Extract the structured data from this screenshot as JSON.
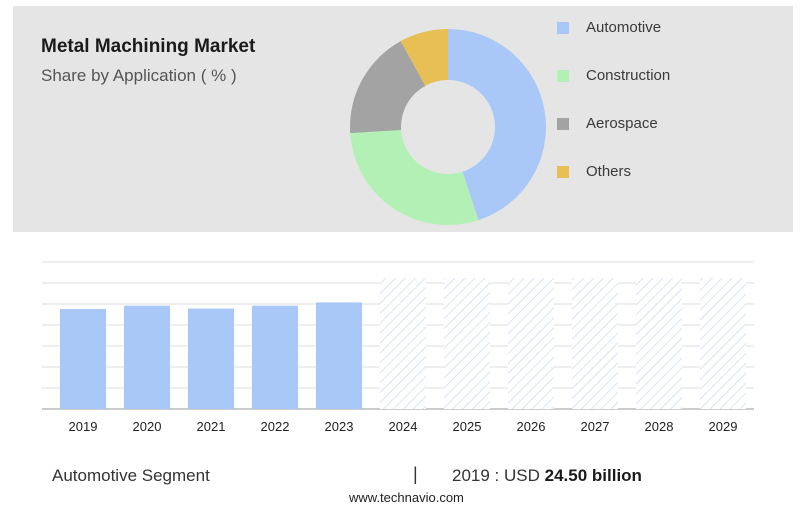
{
  "header": {
    "title": "Metal Machining Market",
    "subtitle": "Share by Application ( % )"
  },
  "chart_data": [
    {
      "type": "pie",
      "variant": "donut",
      "title": "Metal Machining Market",
      "subtitle": "Share by Application ( % )",
      "legend_position": "right",
      "series": [
        {
          "name": "Automotive",
          "value": 45,
          "color": "#a9c8f8"
        },
        {
          "name": "Construction",
          "value": 29,
          "color": "#b3f0b5"
        },
        {
          "name": "Aerospace",
          "value": 18,
          "color": "#a3a3a3"
        },
        {
          "name": "Others",
          "value": 8,
          "color": "#e8bf54"
        }
      ]
    },
    {
      "type": "bar",
      "categories": [
        "2019",
        "2020",
        "2021",
        "2022",
        "2023",
        "2024",
        "2025",
        "2026",
        "2027",
        "2028",
        "2029"
      ],
      "values": [
        24.5,
        25.3,
        24.6,
        25.3,
        26.1,
        null,
        null,
        null,
        null,
        null,
        null
      ],
      "forecast_categories": [
        "2024",
        "2025",
        "2026",
        "2027",
        "2028",
        "2029"
      ],
      "ylim": [
        0,
        36
      ],
      "grid": true,
      "bar_color": "#a9c8f8",
      "forecast_pattern": "hatched"
    }
  ],
  "footer": {
    "segment_label": "Automotive Segment",
    "separator": "|",
    "value_prefix": "2019 : USD",
    "value_bold": "24.50 billion",
    "source": "www.technavio.com"
  }
}
